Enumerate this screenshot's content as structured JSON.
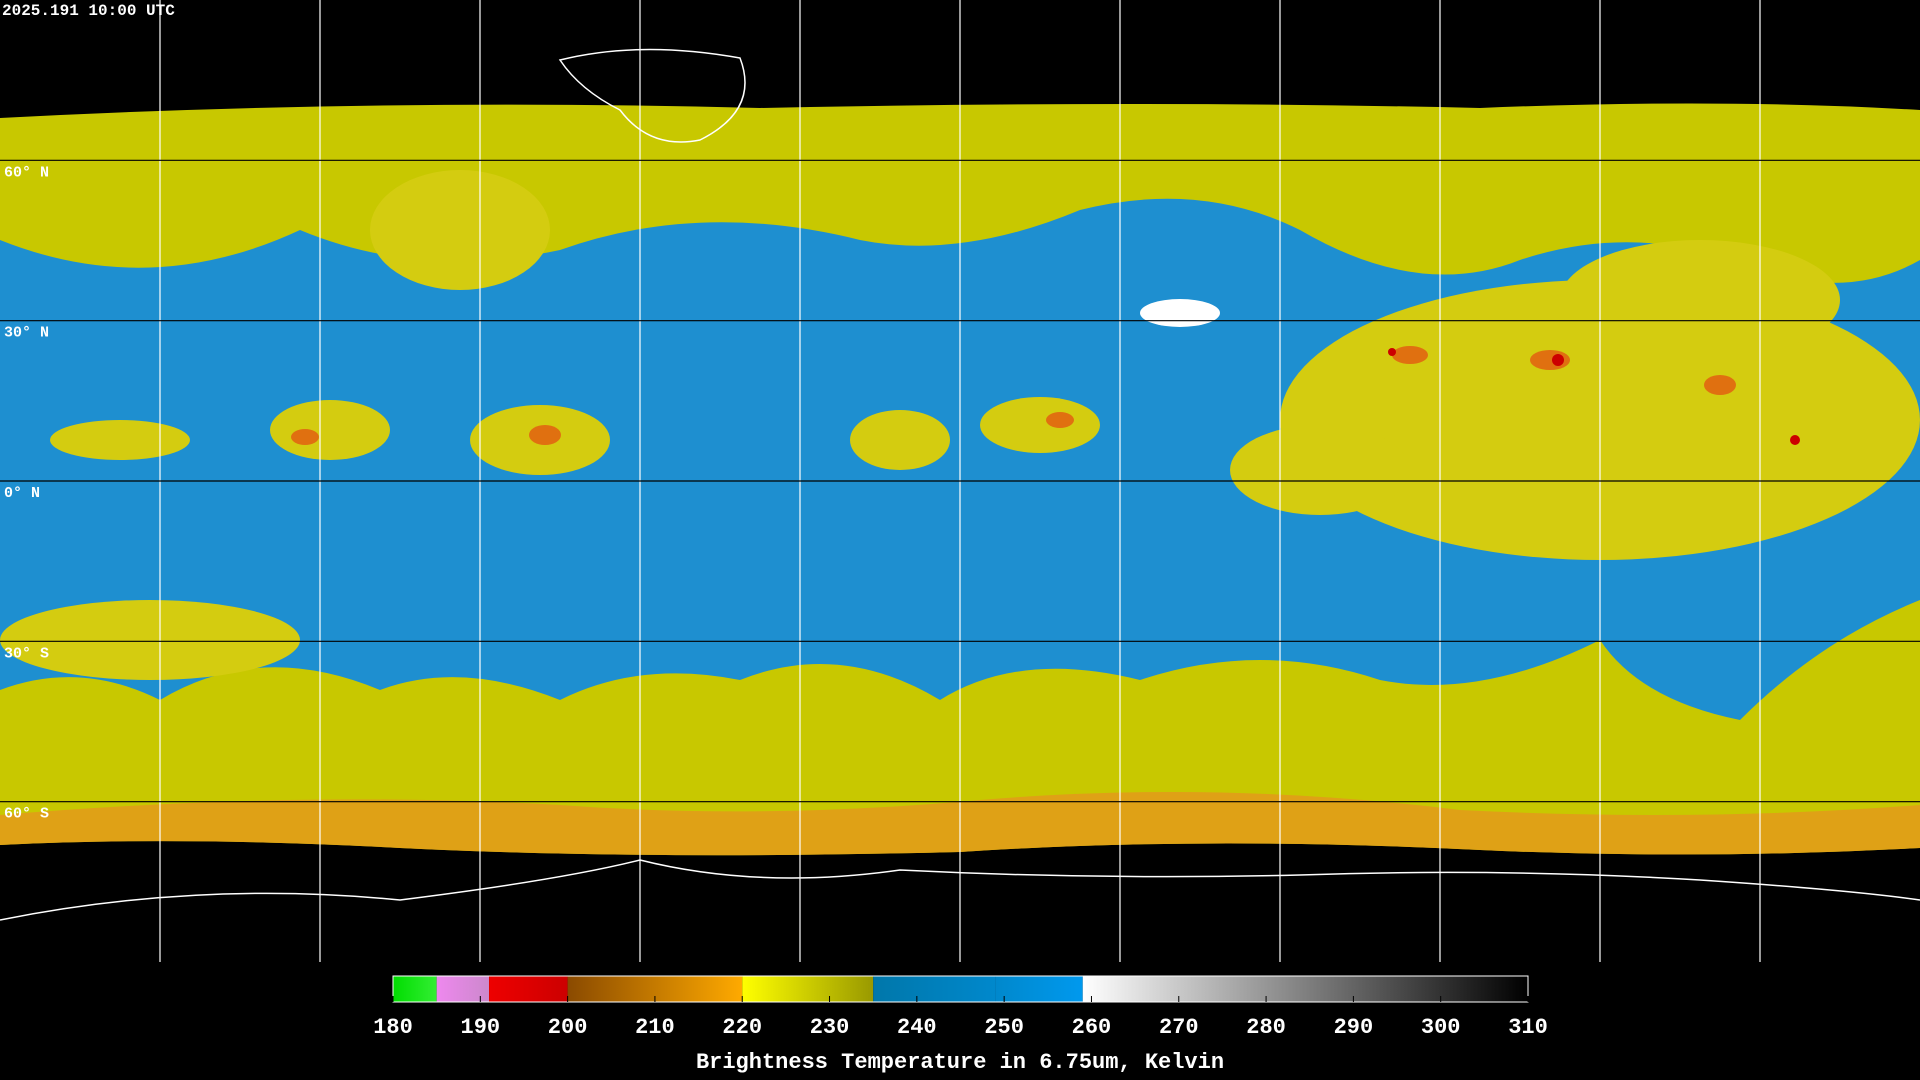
{
  "header": {
    "timestamp": "2025.191 10:00 UTC"
  },
  "map": {
    "latitude_lines": [
      {
        "value": 60,
        "label": "60° N"
      },
      {
        "value": 30,
        "label": "30° N"
      },
      {
        "value": 0,
        "label": "0° N"
      },
      {
        "value": -30,
        "label": "30° S"
      },
      {
        "value": -60,
        "label": "60° S"
      }
    ]
  },
  "colorbar": {
    "title": "Brightness Temperature in 6.75um, Kelvin",
    "range": [
      180,
      310
    ],
    "ticks": [
      180,
      190,
      200,
      210,
      220,
      230,
      240,
      250,
      260,
      270,
      280,
      290,
      300,
      310
    ],
    "segments": [
      {
        "from": 180,
        "to": 185,
        "colors": [
          "#00dd00",
          "#33ee33"
        ]
      },
      {
        "from": 185,
        "to": 191,
        "colors": [
          "#ee88ee",
          "#cc88cc"
        ]
      },
      {
        "from": 191,
        "to": 200,
        "colors": [
          "#ee0000",
          "#cc0000"
        ]
      },
      {
        "from": 200,
        "to": 220,
        "colors": [
          "#8a4a00",
          "#ffaa00"
        ]
      },
      {
        "from": 220,
        "to": 235,
        "colors": [
          "#ffff00",
          "#999900"
        ]
      },
      {
        "from": 235,
        "to": 249,
        "colors": [
          "#0077aa",
          "#0088cc"
        ]
      },
      {
        "from": 249,
        "to": 259,
        "colors": [
          "#0088cc",
          "#0099ee"
        ]
      },
      {
        "from": 259,
        "to": 310,
        "colors": [
          "#ffffff",
          "#000000"
        ]
      }
    ]
  }
}
